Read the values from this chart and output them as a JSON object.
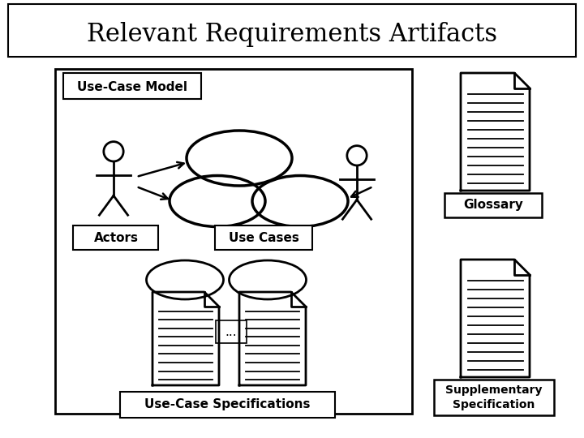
{
  "title": "Relevant Requirements Artifacts",
  "title_fontsize": 22,
  "bg_color": "#ffffff",
  "fg_color": "#000000",
  "use_case_model_label": "Use-Case Model",
  "actors_label": "Actors",
  "use_cases_label": "Use Cases",
  "use_case_specs_label": "Use-Case Specifications",
  "glossary_label": "Glossary",
  "supp_spec_label": "Supplementary\nSpecification"
}
